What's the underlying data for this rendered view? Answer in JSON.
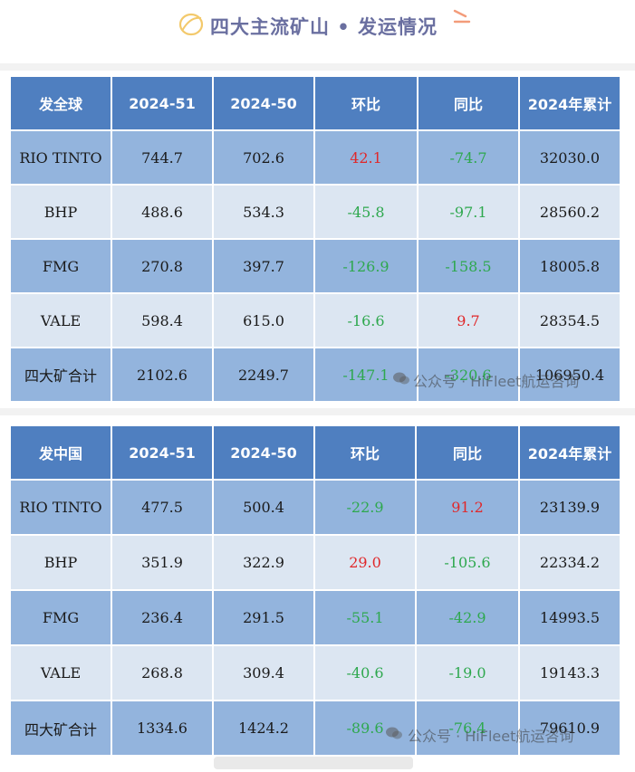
{
  "title": "四大主流矿山 • 发运情况",
  "watermark": "公众号 · HiFleet航运咨询",
  "colors": {
    "header": "#4f7fc0",
    "row_dark": "#93b4dd",
    "row_light": "#dce6f2",
    "up": "#e0282a",
    "down": "#2ea84e"
  },
  "table1": {
    "headers": [
      "发全球",
      "2024-51",
      "2024-50",
      "环比",
      "同比",
      "2024年累计"
    ],
    "rows": [
      [
        "RIO TINTO",
        "744.7",
        "702.6",
        "42.1",
        "-74.7",
        "32030.0"
      ],
      [
        "BHP",
        "488.6",
        "534.3",
        "-45.8",
        "-97.1",
        "28560.2"
      ],
      [
        "FMG",
        "270.8",
        "397.7",
        "-126.9",
        "-158.5",
        "18005.8"
      ],
      [
        "VALE",
        "598.4",
        "615.0",
        "-16.6",
        "9.7",
        "28354.5"
      ],
      [
        "四大矿合计",
        "2102.6",
        "2249.7",
        "-147.1",
        "-320.6",
        "106950.4"
      ]
    ]
  },
  "table2": {
    "headers": [
      "发中国",
      "2024-51",
      "2024-50",
      "环比",
      "同比",
      "2024年累计"
    ],
    "rows": [
      [
        "RIO TINTO",
        "477.5",
        "500.4",
        "-22.9",
        "91.2",
        "23139.9"
      ],
      [
        "BHP",
        "351.9",
        "322.9",
        "29.0",
        "-105.6",
        "22334.2"
      ],
      [
        "FMG",
        "236.4",
        "291.5",
        "-55.1",
        "-42.9",
        "14993.5"
      ],
      [
        "VALE",
        "268.8",
        "309.4",
        "-40.6",
        "-19.0",
        "19143.3"
      ],
      [
        "四大矿合计",
        "1334.6",
        "1424.2",
        "-89.6",
        "-76.4",
        "79610.9"
      ]
    ]
  }
}
